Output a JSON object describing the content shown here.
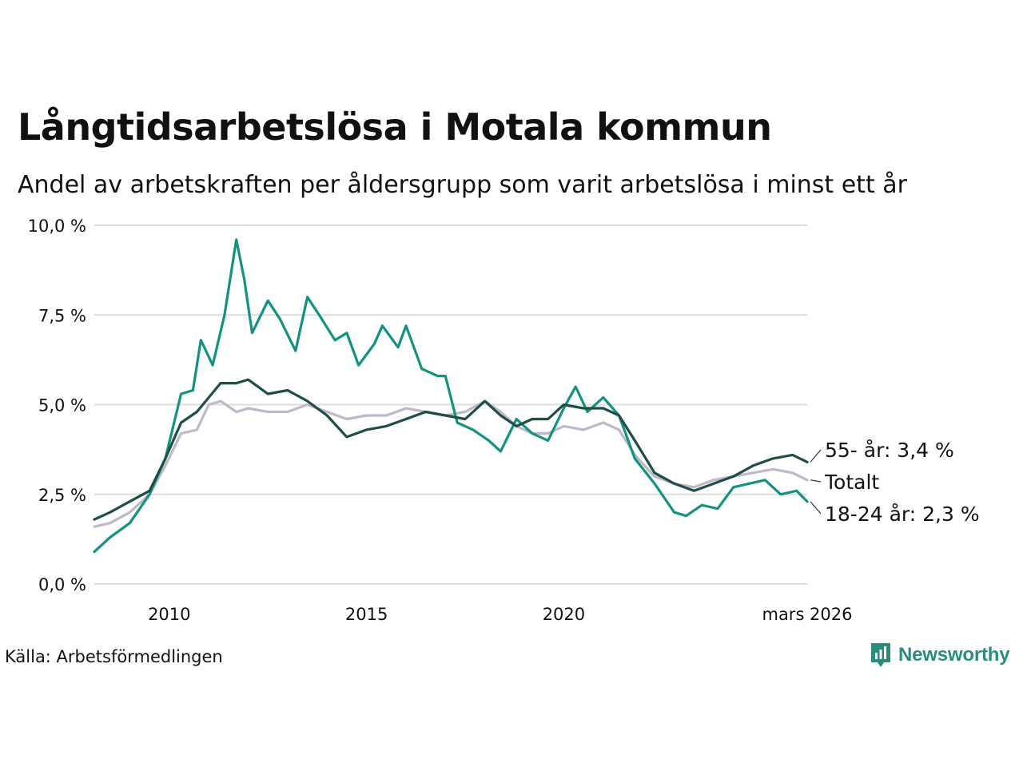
{
  "title": "Långtidsarbetslösa i Motala kommun",
  "subtitle": "Andel av arbetskraften per åldersgrupp som varit arbetslösa i minst ett år",
  "source": "Källa: Arbetsförmedlingen",
  "brand": "Newsworthy",
  "colors": {
    "series_55": "#1f4d47",
    "series_total": "#bdb9c9",
    "series_young": "#13937f",
    "grid": "#dddddd",
    "brand": "#2a8c7f"
  },
  "chart_data": {
    "type": "line",
    "title": "Långtidsarbetslösa i Motala kommun",
    "xlabel": "",
    "ylabel": "",
    "xlim": [
      2008.1,
      2026.17
    ],
    "ylim": [
      0,
      10
    ],
    "grid": true,
    "y_ticks": [
      {
        "value": 0,
        "label": "0,0 %"
      },
      {
        "value": 2.5,
        "label": "2,5 %"
      },
      {
        "value": 5,
        "label": "5,0 %"
      },
      {
        "value": 7.5,
        "label": "7,5 %"
      },
      {
        "value": 10,
        "label": "10,0 %"
      }
    ],
    "x_ticks": [
      {
        "value": 2010,
        "label": "2010"
      },
      {
        "value": 2015,
        "label": "2015"
      },
      {
        "value": 2020,
        "label": "2020"
      },
      {
        "value": 2026.17,
        "label": "mars 2026"
      }
    ],
    "series": [
      {
        "name": "Totalt",
        "label": "Totalt",
        "color_key": "series_total",
        "points": [
          [
            2008.1,
            1.6
          ],
          [
            2008.5,
            1.7
          ],
          [
            2009.0,
            2.0
          ],
          [
            2009.5,
            2.5
          ],
          [
            2009.9,
            3.3
          ],
          [
            2010.3,
            4.2
          ],
          [
            2010.7,
            4.3
          ],
          [
            2011.0,
            5.0
          ],
          [
            2011.3,
            5.1
          ],
          [
            2011.7,
            4.8
          ],
          [
            2012.0,
            4.9
          ],
          [
            2012.5,
            4.8
          ],
          [
            2013.0,
            4.8
          ],
          [
            2013.5,
            5.0
          ],
          [
            2014.0,
            4.8
          ],
          [
            2014.5,
            4.6
          ],
          [
            2015.0,
            4.7
          ],
          [
            2015.5,
            4.7
          ],
          [
            2016.0,
            4.9
          ],
          [
            2016.5,
            4.8
          ],
          [
            2017.0,
            4.7
          ],
          [
            2017.5,
            4.8
          ],
          [
            2018.0,
            5.1
          ],
          [
            2018.4,
            4.8
          ],
          [
            2018.8,
            4.4
          ],
          [
            2019.2,
            4.2
          ],
          [
            2019.6,
            4.2
          ],
          [
            2020.0,
            4.4
          ],
          [
            2020.5,
            4.3
          ],
          [
            2021.0,
            4.5
          ],
          [
            2021.4,
            4.3
          ],
          [
            2021.8,
            3.6
          ],
          [
            2022.3,
            3.0
          ],
          [
            2022.8,
            2.8
          ],
          [
            2023.3,
            2.7
          ],
          [
            2023.8,
            2.9
          ],
          [
            2024.3,
            3.0
          ],
          [
            2024.8,
            3.1
          ],
          [
            2025.3,
            3.2
          ],
          [
            2025.8,
            3.1
          ],
          [
            2026.17,
            2.9
          ]
        ]
      },
      {
        "name": "55- år",
        "label": "55- år: 3,4 %",
        "color_key": "series_55",
        "points": [
          [
            2008.1,
            1.8
          ],
          [
            2008.5,
            2.0
          ],
          [
            2009.0,
            2.3
          ],
          [
            2009.5,
            2.6
          ],
          [
            2009.9,
            3.5
          ],
          [
            2010.3,
            4.5
          ],
          [
            2010.7,
            4.8
          ],
          [
            2011.0,
            5.2
          ],
          [
            2011.3,
            5.6
          ],
          [
            2011.7,
            5.6
          ],
          [
            2012.0,
            5.7
          ],
          [
            2012.5,
            5.3
          ],
          [
            2013.0,
            5.4
          ],
          [
            2013.5,
            5.1
          ],
          [
            2014.0,
            4.7
          ],
          [
            2014.5,
            4.1
          ],
          [
            2015.0,
            4.3
          ],
          [
            2015.5,
            4.4
          ],
          [
            2016.0,
            4.6
          ],
          [
            2016.5,
            4.8
          ],
          [
            2017.0,
            4.7
          ],
          [
            2017.5,
            4.6
          ],
          [
            2018.0,
            5.1
          ],
          [
            2018.4,
            4.7
          ],
          [
            2018.8,
            4.4
          ],
          [
            2019.2,
            4.6
          ],
          [
            2019.6,
            4.6
          ],
          [
            2020.0,
            5.0
          ],
          [
            2020.5,
            4.9
          ],
          [
            2021.0,
            4.9
          ],
          [
            2021.4,
            4.7
          ],
          [
            2021.8,
            4.0
          ],
          [
            2022.3,
            3.1
          ],
          [
            2022.8,
            2.8
          ],
          [
            2023.3,
            2.6
          ],
          [
            2023.8,
            2.8
          ],
          [
            2024.3,
            3.0
          ],
          [
            2024.8,
            3.3
          ],
          [
            2025.3,
            3.5
          ],
          [
            2025.8,
            3.6
          ],
          [
            2026.17,
            3.4
          ]
        ]
      },
      {
        "name": "18-24 år",
        "label": "18-24 år: 2,3 %",
        "color_key": "series_young",
        "points": [
          [
            2008.1,
            0.9
          ],
          [
            2008.5,
            1.3
          ],
          [
            2009.0,
            1.7
          ],
          [
            2009.5,
            2.5
          ],
          [
            2009.9,
            3.5
          ],
          [
            2010.3,
            5.3
          ],
          [
            2010.6,
            5.4
          ],
          [
            2010.8,
            6.8
          ],
          [
            2011.1,
            6.1
          ],
          [
            2011.4,
            7.5
          ],
          [
            2011.7,
            9.6
          ],
          [
            2011.9,
            8.5
          ],
          [
            2012.1,
            7.0
          ],
          [
            2012.5,
            7.9
          ],
          [
            2012.8,
            7.4
          ],
          [
            2013.2,
            6.5
          ],
          [
            2013.5,
            8.0
          ],
          [
            2013.8,
            7.5
          ],
          [
            2014.2,
            6.8
          ],
          [
            2014.5,
            7.0
          ],
          [
            2014.8,
            6.1
          ],
          [
            2015.2,
            6.7
          ],
          [
            2015.4,
            7.2
          ],
          [
            2015.8,
            6.6
          ],
          [
            2016.0,
            7.2
          ],
          [
            2016.4,
            6.0
          ],
          [
            2016.8,
            5.8
          ],
          [
            2017.0,
            5.8
          ],
          [
            2017.3,
            4.5
          ],
          [
            2017.7,
            4.3
          ],
          [
            2018.1,
            4.0
          ],
          [
            2018.4,
            3.7
          ],
          [
            2018.8,
            4.6
          ],
          [
            2019.2,
            4.2
          ],
          [
            2019.6,
            4.0
          ],
          [
            2020.0,
            4.9
          ],
          [
            2020.3,
            5.5
          ],
          [
            2020.6,
            4.8
          ],
          [
            2021.0,
            5.2
          ],
          [
            2021.4,
            4.7
          ],
          [
            2021.8,
            3.5
          ],
          [
            2022.3,
            2.8
          ],
          [
            2022.8,
            2.0
          ],
          [
            2023.1,
            1.9
          ],
          [
            2023.5,
            2.2
          ],
          [
            2023.9,
            2.1
          ],
          [
            2024.3,
            2.7
          ],
          [
            2024.7,
            2.8
          ],
          [
            2025.1,
            2.9
          ],
          [
            2025.5,
            2.5
          ],
          [
            2025.9,
            2.6
          ],
          [
            2026.17,
            2.3
          ]
        ]
      }
    ]
  }
}
